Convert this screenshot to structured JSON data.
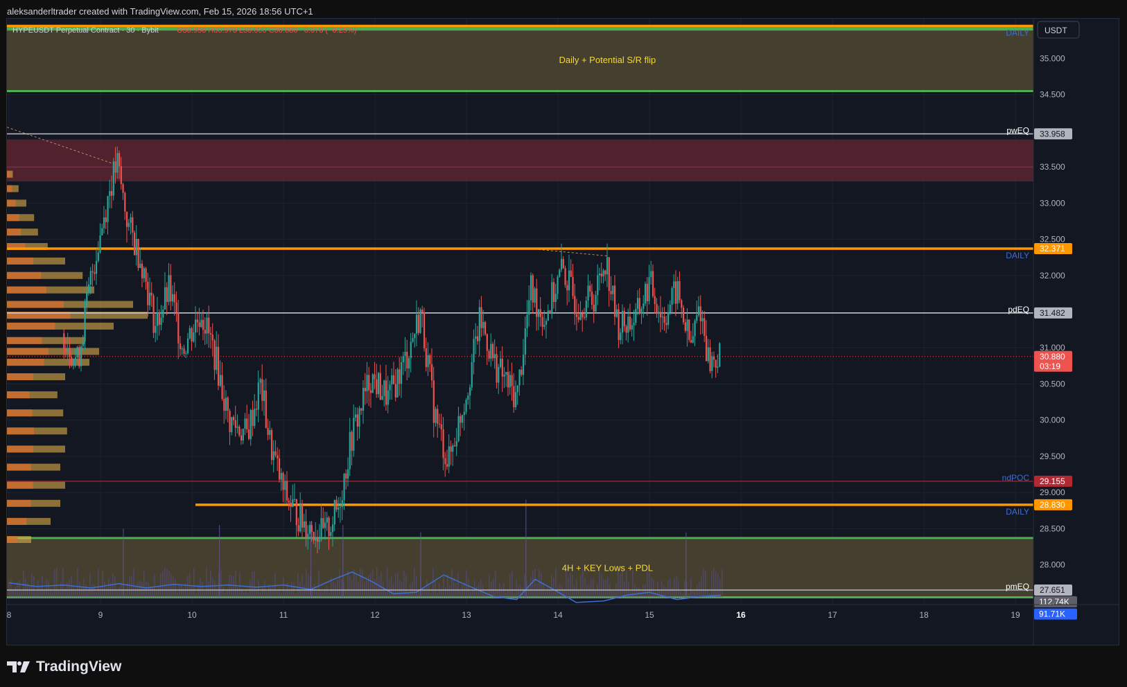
{
  "header": {
    "text": "aleksanderltrader created with TradingView.com, Feb 15, 2026 18:56 UTC+1"
  },
  "symbol": {
    "name": "HYPEUSDT Perpetual Contract · 30 · Bybit",
    "ohlc": "O30.958  H30.973  L30.600  C30.880  −0.078 (−0.25%)"
  },
  "currency_button": "USDT",
  "footer": {
    "brand": "TradingView"
  },
  "colors": {
    "bg": "#131722",
    "up": "#26a69a",
    "down": "#ef5350",
    "orange": "#ff9800",
    "green": "#4caf50",
    "zone": "#4a4430",
    "supply": "#5c2430",
    "line": "#b2b5be",
    "blue": "#2962ff",
    "volume_ma": "#3d6fd6"
  },
  "chart_data": {
    "type": "candlestick",
    "y_axis": {
      "range": [
        27.45,
        35.55
      ],
      "ticks": [
        "35.000",
        "34.500",
        "33.500",
        "33.000",
        "32.500",
        "32.000",
        "31.000",
        "30.500",
        "30.000",
        "29.500",
        "29.000",
        "28.500",
        "28.000"
      ]
    },
    "x_axis": {
      "ticks": [
        "8",
        "9",
        "10",
        "11",
        "12",
        "13",
        "14",
        "15",
        "16",
        "17",
        "18",
        "19"
      ],
      "bold_ticks": [
        "16"
      ]
    },
    "zones": [
      {
        "name": "daily-zone",
        "from": 34.55,
        "to": 35.42,
        "label": "Daily + Potential S/R flip"
      },
      {
        "name": "supply-zone",
        "from": 33.3,
        "to": 33.88,
        "label": ""
      },
      {
        "name": "lows-zone",
        "from": 27.55,
        "to": 28.37,
        "label": "4H + KEY  Lows + PDL"
      }
    ],
    "levels": [
      {
        "name": "daily-top",
        "price": 35.45,
        "color": "#ff9800",
        "label": "DAILY",
        "label_color": "#3d6fd6",
        "badge": ""
      },
      {
        "name": "pweq",
        "price": 33.958,
        "color": "#b2b5be",
        "label": "pwEQ",
        "label_color": "#ffffff",
        "badge": "33.958"
      },
      {
        "name": "daily-mid",
        "price": 32.371,
        "color": "#ff9800",
        "label": "DAILY",
        "label_color": "#3d6fd6",
        "badge": "32.371"
      },
      {
        "name": "pdeq",
        "price": 31.482,
        "color": "#d1d4dc",
        "label": "pdEQ",
        "label_color": "#ffffff",
        "badge": "31.482"
      },
      {
        "name": "ndpoc",
        "price": 29.155,
        "color": "#b22833",
        "label": "ndPOC",
        "label_color": "#3d6fd6",
        "badge": "29.155"
      },
      {
        "name": "daily-low",
        "price": 28.83,
        "color": "#ff9800",
        "label": "DAILY",
        "label_color": "#3d6fd6",
        "badge": "28.830"
      },
      {
        "name": "pmeq",
        "price": 27.651,
        "color": "#b2b5be",
        "label": "pmEQ",
        "label_color": "#ffffff",
        "badge": "27.651"
      }
    ],
    "current_price": {
      "value": 30.88,
      "badge": "30.880",
      "countdown": "03:19"
    },
    "volume_badges": [
      "112.74K",
      "91.71K"
    ],
    "price_path": [
      [
        8.6,
        31.2
      ],
      [
        8.75,
        30.8
      ],
      [
        8.9,
        32.0
      ],
      [
        9.0,
        32.6
      ],
      [
        9.1,
        33.2
      ],
      [
        9.18,
        33.55
      ],
      [
        9.3,
        32.7
      ],
      [
        9.45,
        32.2
      ],
      [
        9.6,
        31.3
      ],
      [
        9.75,
        31.8
      ],
      [
        9.9,
        31.0
      ],
      [
        10.1,
        31.5
      ],
      [
        10.25,
        30.9
      ],
      [
        10.4,
        30.0
      ],
      [
        10.6,
        29.8
      ],
      [
        10.75,
        30.5
      ],
      [
        10.85,
        29.7
      ],
      [
        11.0,
        29.0
      ],
      [
        11.2,
        28.6
      ],
      [
        11.45,
        28.4
      ],
      [
        11.6,
        28.8
      ],
      [
        11.75,
        29.8
      ],
      [
        11.95,
        30.6
      ],
      [
        12.15,
        30.3
      ],
      [
        12.35,
        30.9
      ],
      [
        12.5,
        31.5
      ],
      [
        12.65,
        30.1
      ],
      [
        12.8,
        29.4
      ],
      [
        13.0,
        30.4
      ],
      [
        13.15,
        31.4
      ],
      [
        13.3,
        30.8
      ],
      [
        13.55,
        30.3
      ],
      [
        13.7,
        31.8
      ],
      [
        13.85,
        31.4
      ],
      [
        14.05,
        32.1
      ],
      [
        14.2,
        31.6
      ],
      [
        14.4,
        31.7
      ],
      [
        14.52,
        32.25
      ],
      [
        14.65,
        31.3
      ],
      [
        14.85,
        31.4
      ],
      [
        15.0,
        31.9
      ],
      [
        15.15,
        31.4
      ],
      [
        15.3,
        31.8
      ],
      [
        15.45,
        31.0
      ],
      [
        15.55,
        31.6
      ],
      [
        15.65,
        30.8
      ],
      [
        15.78,
        30.88
      ]
    ],
    "volume_profile": [
      [
        28.35,
        0.25
      ],
      [
        28.6,
        0.45
      ],
      [
        28.85,
        0.55
      ],
      [
        29.1,
        0.6
      ],
      [
        29.35,
        0.55
      ],
      [
        29.6,
        0.6
      ],
      [
        29.85,
        0.62
      ],
      [
        30.1,
        0.58
      ],
      [
        30.35,
        0.52
      ],
      [
        30.6,
        0.6
      ],
      [
        30.8,
        0.85
      ],
      [
        30.95,
        0.95
      ],
      [
        31.1,
        0.8
      ],
      [
        31.3,
        1.1
      ],
      [
        31.45,
        1.45
      ],
      [
        31.6,
        1.3
      ],
      [
        31.8,
        0.9
      ],
      [
        32.0,
        0.78
      ],
      [
        32.2,
        0.6
      ],
      [
        32.4,
        0.42
      ],
      [
        32.6,
        0.32
      ],
      [
        32.8,
        0.28
      ],
      [
        33.0,
        0.2
      ],
      [
        33.2,
        0.12
      ],
      [
        33.4,
        0.06
      ]
    ],
    "volume_ma": [
      [
        8.0,
        27.75
      ],
      [
        8.3,
        27.7
      ],
      [
        8.6,
        27.72
      ],
      [
        8.9,
        27.68
      ],
      [
        9.2,
        27.74
      ],
      [
        9.5,
        27.68
      ],
      [
        9.8,
        27.73
      ],
      [
        10.1,
        27.7
      ],
      [
        10.4,
        27.72
      ],
      [
        10.7,
        27.69
      ],
      [
        11.0,
        27.72
      ],
      [
        11.3,
        27.66
      ],
      [
        11.55,
        27.8
      ],
      [
        11.75,
        27.9
      ],
      [
        11.95,
        27.78
      ],
      [
        12.2,
        27.6
      ],
      [
        12.45,
        27.62
      ],
      [
        12.75,
        27.86
      ],
      [
        13.0,
        27.72
      ],
      [
        13.3,
        27.56
      ],
      [
        13.55,
        27.52
      ],
      [
        13.75,
        27.8
      ],
      [
        13.95,
        27.66
      ],
      [
        14.2,
        27.48
      ],
      [
        14.5,
        27.5
      ],
      [
        14.75,
        27.58
      ],
      [
        15.0,
        27.62
      ],
      [
        15.3,
        27.52
      ],
      [
        15.55,
        27.56
      ],
      [
        15.78,
        27.58
      ]
    ],
    "volume_spikes": [
      [
        9.25,
        28.5
      ],
      [
        10.3,
        28.55
      ],
      [
        11.3,
        28.6
      ],
      [
        11.65,
        28.55
      ],
      [
        12.5,
        28.45
      ],
      [
        13.65,
        28.9
      ],
      [
        15.4,
        28.45
      ]
    ]
  }
}
